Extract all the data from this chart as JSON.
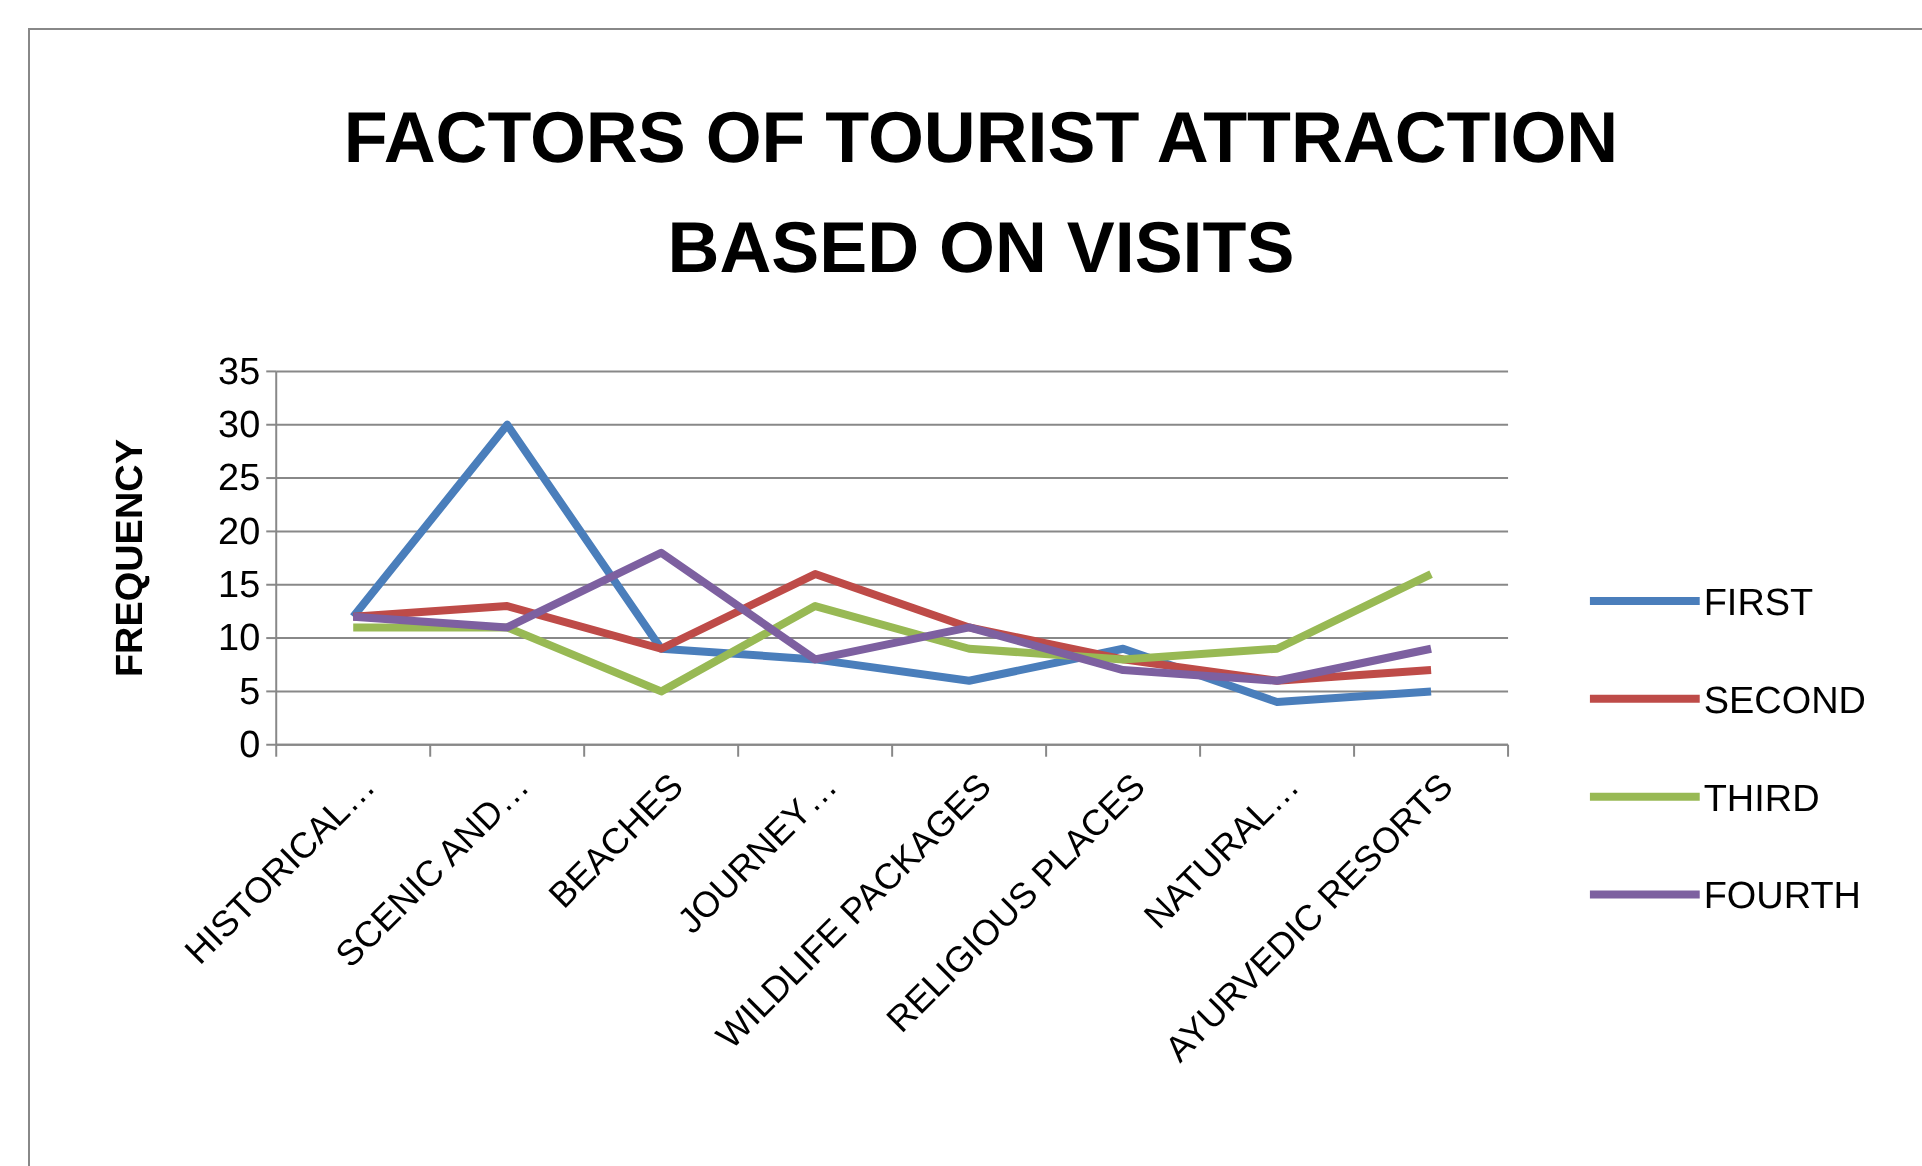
{
  "chart_data": {
    "type": "line",
    "title": "FACTORS OF TOURIST ATTRACTION BASED ON VISITS",
    "ylabel": "FREQUENCY",
    "categories": [
      "HISTORICAL…",
      "SCENIC AND…",
      "BEACHES",
      "JOURNEY…",
      "WILDLIFE PACKAGES",
      "RELIGIOUS PLACES",
      "NATURAL…",
      "AYURVEDIC RESORTS"
    ],
    "series": [
      {
        "name": "FIRST",
        "color": "#4a7ebb",
        "values": [
          12,
          30,
          9,
          8,
          6,
          9,
          4,
          5
        ]
      },
      {
        "name": "SECOND",
        "color": "#be4b48",
        "values": [
          12,
          13,
          9,
          16,
          11,
          8,
          6,
          7
        ]
      },
      {
        "name": "THIRD",
        "color": "#98b954",
        "values": [
          11,
          11,
          5,
          13,
          9,
          8,
          9,
          16
        ]
      },
      {
        "name": "FOURTH",
        "color": "#7d60a0",
        "values": [
          12,
          11,
          18,
          8,
          11,
          7,
          6,
          9
        ]
      }
    ],
    "ylim": [
      0,
      35
    ],
    "yticks": [
      0,
      5,
      10,
      15,
      20,
      25,
      30,
      35
    ],
    "grid": "y",
    "legend": "right",
    "marker": "none",
    "line_style": "solid"
  }
}
